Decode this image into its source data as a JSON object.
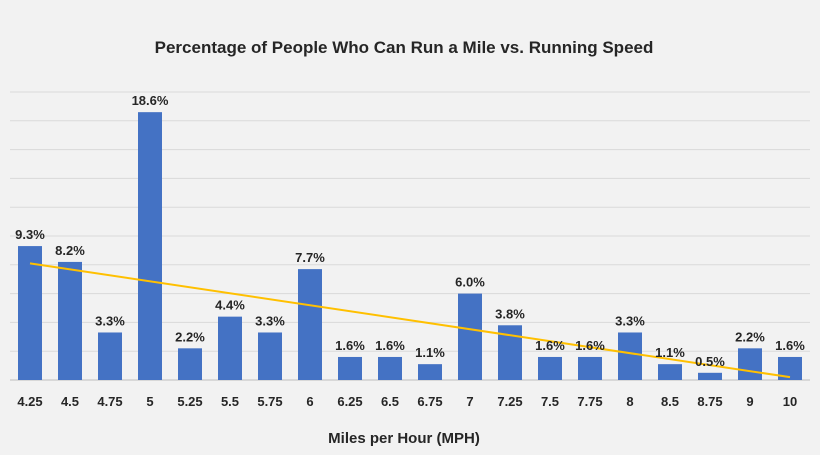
{
  "chart_data": {
    "type": "bar",
    "title": "Percentage of People Who Can Run a Mile vs. Running Speed",
    "xlabel": "Miles per Hour (MPH)",
    "ylabel": "",
    "categories": [
      "4.25",
      "4.5",
      "4.75",
      "5",
      "5.25",
      "5.5",
      "5.75",
      "6",
      "6.25",
      "6.5",
      "6.75",
      "7",
      "7.25",
      "7.5",
      "7.75",
      "8",
      "8.5",
      "8.75",
      "9",
      "10"
    ],
    "values": [
      9.3,
      8.2,
      3.3,
      18.6,
      2.2,
      4.4,
      3.3,
      7.7,
      1.6,
      1.6,
      1.1,
      6.0,
      3.8,
      1.6,
      1.6,
      3.3,
      1.1,
      0.5,
      2.2,
      1.6
    ],
    "data_labels": [
      "9.3%",
      "8.2%",
      "3.3%",
      "18.6%",
      "2.2%",
      "4.4%",
      "3.3%",
      "7.7%",
      "1.6%",
      "1.6%",
      "1.1%",
      "6.0%",
      "3.8%",
      "1.6%",
      "1.6%",
      "3.3%",
      "1.1%",
      "0.5%",
      "2.2%",
      "1.6%"
    ],
    "ylim": [
      0,
      20
    ],
    "grid": true,
    "trendline": {
      "type": "linear",
      "start": 8.1,
      "end": 0.2
    },
    "colors": {
      "bar": "#4472c4",
      "trendline": "#ffc000",
      "background": "#f2f2f2"
    }
  }
}
